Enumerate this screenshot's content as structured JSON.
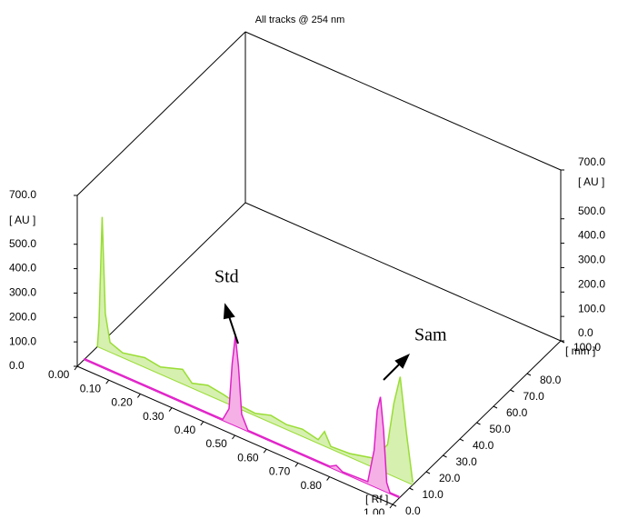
{
  "chart_data": {
    "type": "hptlc3d",
    "title": "All tracks @ 254 nm",
    "y_label": "[ AU ]",
    "y2_label": "[ AU ]",
    "x_label": "[ Rf ]",
    "z_label": "[ mm ]",
    "ylim": [
      0,
      700
    ],
    "yticks": [
      {
        "value": 0,
        "label": "0.0"
      },
      {
        "value": 100,
        "label": "100.0"
      },
      {
        "value": 200,
        "label": "200.0"
      },
      {
        "value": 300,
        "label": "300.0"
      },
      {
        "value": 400,
        "label": "400.0"
      },
      {
        "value": 500,
        "label": "500.0"
      },
      {
        "value": 700,
        "label": "700.0"
      }
    ],
    "y2ticks": [
      {
        "value": 0,
        "label": "0.0"
      },
      {
        "value": 100,
        "label": "100.0"
      },
      {
        "value": 200,
        "label": "200.0"
      },
      {
        "value": 300,
        "label": "300.0"
      },
      {
        "value": 400,
        "label": "400.0"
      },
      {
        "value": 500,
        "label": "500.0"
      },
      {
        "value": 700,
        "label": "700.0"
      }
    ],
    "xlim": [
      0,
      1
    ],
    "xticks": [
      {
        "value": 0,
        "label": "0.00"
      },
      {
        "value": 0.1,
        "label": "0.10"
      },
      {
        "value": 0.2,
        "label": "0.20"
      },
      {
        "value": 0.3,
        "label": "0.30"
      },
      {
        "value": 0.4,
        "label": "0.40"
      },
      {
        "value": 0.5,
        "label": "0.50"
      },
      {
        "value": 0.6,
        "label": "0.60"
      },
      {
        "value": 0.7,
        "label": "0.70"
      },
      {
        "value": 0.8,
        "label": "0.80"
      },
      {
        "value": 1,
        "label": "1.00"
      }
    ],
    "zlim": [
      0,
      100
    ],
    "zticks": [
      {
        "value": 0,
        "label": "0.0"
      },
      {
        "value": 10,
        "label": "10.0"
      },
      {
        "value": 20,
        "label": "20.0"
      },
      {
        "value": 30,
        "label": "30.0"
      },
      {
        "value": 40,
        "label": "40.0"
      },
      {
        "value": 50,
        "label": "50.0"
      },
      {
        "value": 60,
        "label": "60.0"
      },
      {
        "value": 70,
        "label": "70.0"
      },
      {
        "value": 80,
        "label": "80.0"
      },
      {
        "value": 100,
        "label": "100.0"
      }
    ],
    "series": [
      {
        "track_mm": 12,
        "color": "#99dd33",
        "fill": "#d6f0b0",
        "x": [
          0,
          0.005,
          0.015,
          0.025,
          0.04,
          0.08,
          0.15,
          0.2,
          0.27,
          0.3,
          0.35,
          0.4,
          0.45,
          0.5,
          0.55,
          0.6,
          0.65,
          0.7,
          0.72,
          0.74,
          0.8,
          0.88,
          0.92,
          0.94,
          0.96,
          0.98,
          1
        ],
        "values": [
          0,
          100,
          540,
          150,
          40,
          20,
          40,
          30,
          60,
          20,
          40,
          30,
          15,
          10,
          30,
          20,
          30,
          15,
          60,
          10,
          15,
          40,
          120,
          300,
          420,
          200,
          10
        ]
      },
      {
        "track_mm": 4,
        "color": "#e020c8",
        "fill": "#f5b0e6",
        "x": [
          0,
          0.1,
          0.2,
          0.3,
          0.44,
          0.46,
          0.47,
          0.48,
          0.49,
          0.5,
          0.52,
          0.6,
          0.7,
          0.78,
          0.8,
          0.82,
          0.9,
          0.92,
          0.93,
          0.94,
          0.95,
          0.96,
          0.97,
          1
        ],
        "values": [
          5,
          5,
          5,
          5,
          5,
          60,
          250,
          370,
          250,
          60,
          5,
          5,
          5,
          5,
          20,
          5,
          10,
          150,
          320,
          380,
          250,
          40,
          5,
          5
        ]
      }
    ],
    "annotations": [
      {
        "text": "Std"
      },
      {
        "text": "Sam"
      }
    ]
  }
}
